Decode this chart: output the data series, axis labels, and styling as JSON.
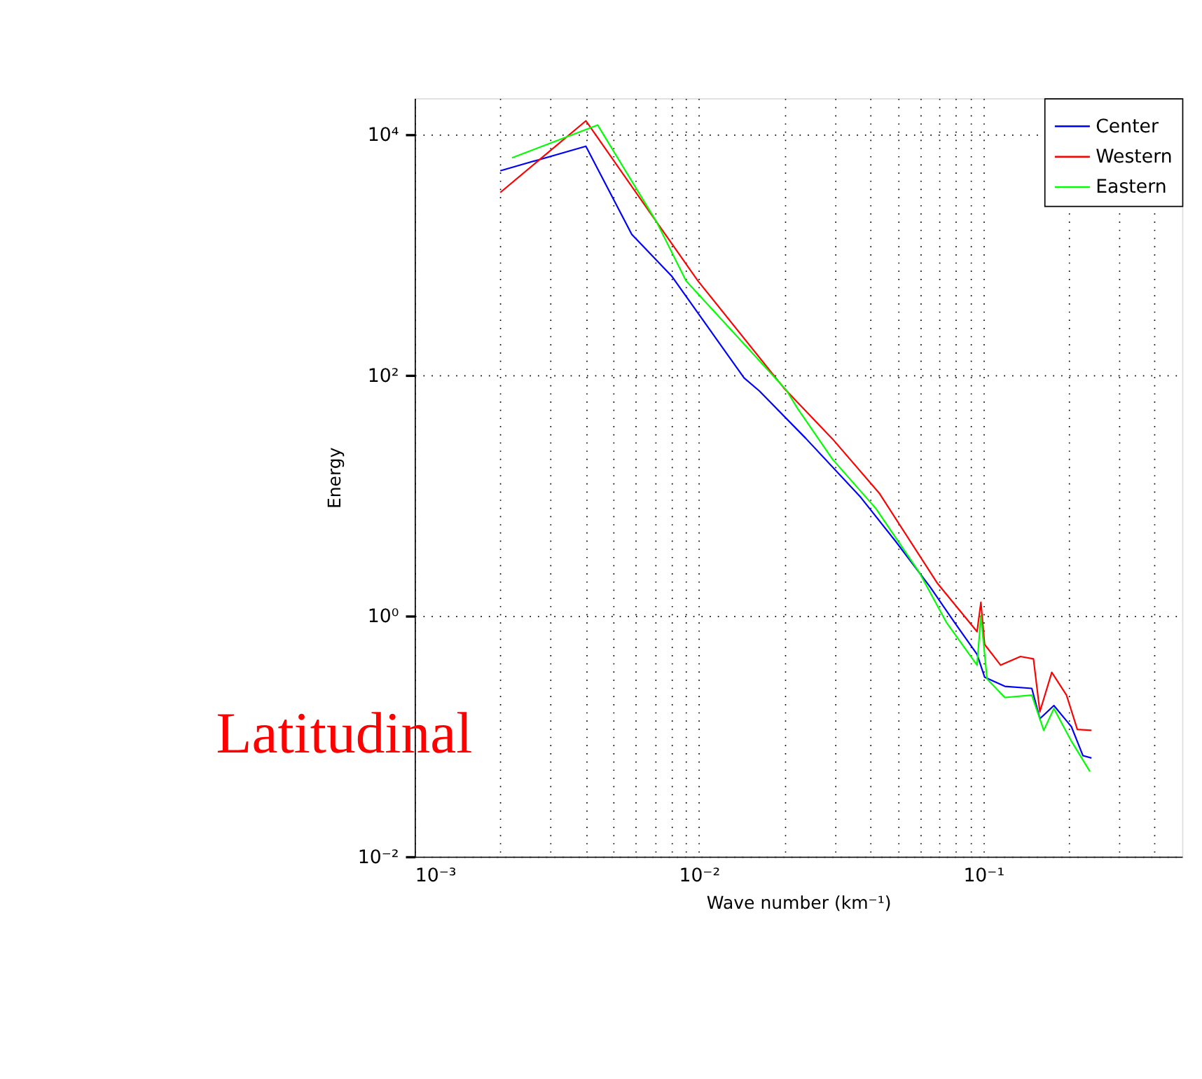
{
  "chart_data": {
    "type": "line",
    "xlabel": "Wave number (km⁻¹)",
    "ylabel": "Energy",
    "log": "xy",
    "grid": true,
    "legend": "top right",
    "line_style": "solid",
    "marker": "none",
    "annotations": [
      "Latitudinal"
    ],
    "xlim": [
      0.001,
      0.5
    ],
    "ylim": [
      0.01,
      20000
    ],
    "xticks": [
      {
        "value": 0.001,
        "label": "10⁻³"
      },
      {
        "value": 0.002,
        "label": null
      },
      {
        "value": 0.003,
        "label": null
      },
      {
        "value": 0.004,
        "label": null
      },
      {
        "value": 0.005,
        "label": null
      },
      {
        "value": 0.006,
        "label": null
      },
      {
        "value": 0.007,
        "label": null
      },
      {
        "value": 0.008,
        "label": null
      },
      {
        "value": 0.009,
        "label": null
      },
      {
        "value": 0.01,
        "label": "10⁻²"
      },
      {
        "value": 0.02,
        "label": null
      },
      {
        "value": 0.03,
        "label": null
      },
      {
        "value": 0.04,
        "label": null
      },
      {
        "value": 0.05,
        "label": null
      },
      {
        "value": 0.06,
        "label": null
      },
      {
        "value": 0.07,
        "label": null
      },
      {
        "value": 0.08,
        "label": null
      },
      {
        "value": 0.09,
        "label": null
      },
      {
        "value": 0.1,
        "label": "10⁻¹"
      },
      {
        "value": 0.2,
        "label": null
      },
      {
        "value": 0.3,
        "label": null
      },
      {
        "value": 0.4,
        "label": null
      }
    ],
    "yticks": [
      {
        "value": 0.01,
        "label": "10⁻²"
      },
      {
        "value": 1,
        "label": "10⁰"
      },
      {
        "value": 100,
        "label": "10²"
      },
      {
        "value": 10000,
        "label": "10⁴"
      }
    ],
    "series": [
      {
        "name": "Center",
        "color": "#0000ff",
        "x": [
          0.002,
          0.004,
          0.0058,
          0.008,
          0.0144,
          0.0163,
          0.0237,
          0.037,
          0.049,
          0.065,
          0.079,
          0.095,
          0.098,
          0.101,
          0.119,
          0.148,
          0.158,
          0.177,
          0.204,
          0.224,
          0.24
        ],
        "values": [
          5000,
          8000,
          1480,
          670,
          95,
          74,
          30,
          9.7,
          4.2,
          1.74,
          0.89,
          0.48,
          null,
          0.31,
          0.26,
          0.25,
          0.14,
          0.18,
          0.12,
          0.069,
          0.066
        ]
      },
      {
        "name": "Western",
        "color": "#ff0000",
        "x": [
          0.002,
          0.004,
          0.0071,
          0.0099,
          0.02,
          0.0295,
          0.043,
          0.069,
          0.095,
          0.098,
          0.101,
          0.115,
          0.135,
          0.15,
          0.158,
          0.174,
          0.196,
          0.214,
          0.24
        ],
        "values": [
          3300,
          13000,
          1870,
          610,
          77,
          29.5,
          10.5,
          1.86,
          0.74,
          1.3,
          0.58,
          0.39,
          0.46,
          0.44,
          0.16,
          0.34,
          0.22,
          0.114,
          0.112
        ]
      },
      {
        "name": "Eastern",
        "color": "#00ff00",
        "x": [
          0.0022,
          0.0044,
          0.0071,
          0.009,
          0.0203,
          0.0222,
          0.0295,
          0.0419,
          0.0595,
          0.074,
          0.095,
          0.098,
          0.103,
          0.119,
          0.148,
          0.163,
          0.177,
          0.204,
          0.237
        ],
        "values": [
          6400,
          12000,
          1870,
          610,
          75,
          53,
          20,
          7.8,
          2.3,
          0.89,
          0.39,
          1.0,
          0.3,
          0.21,
          0.22,
          0.112,
          0.17,
          0.091,
          0.051
        ]
      }
    ]
  }
}
